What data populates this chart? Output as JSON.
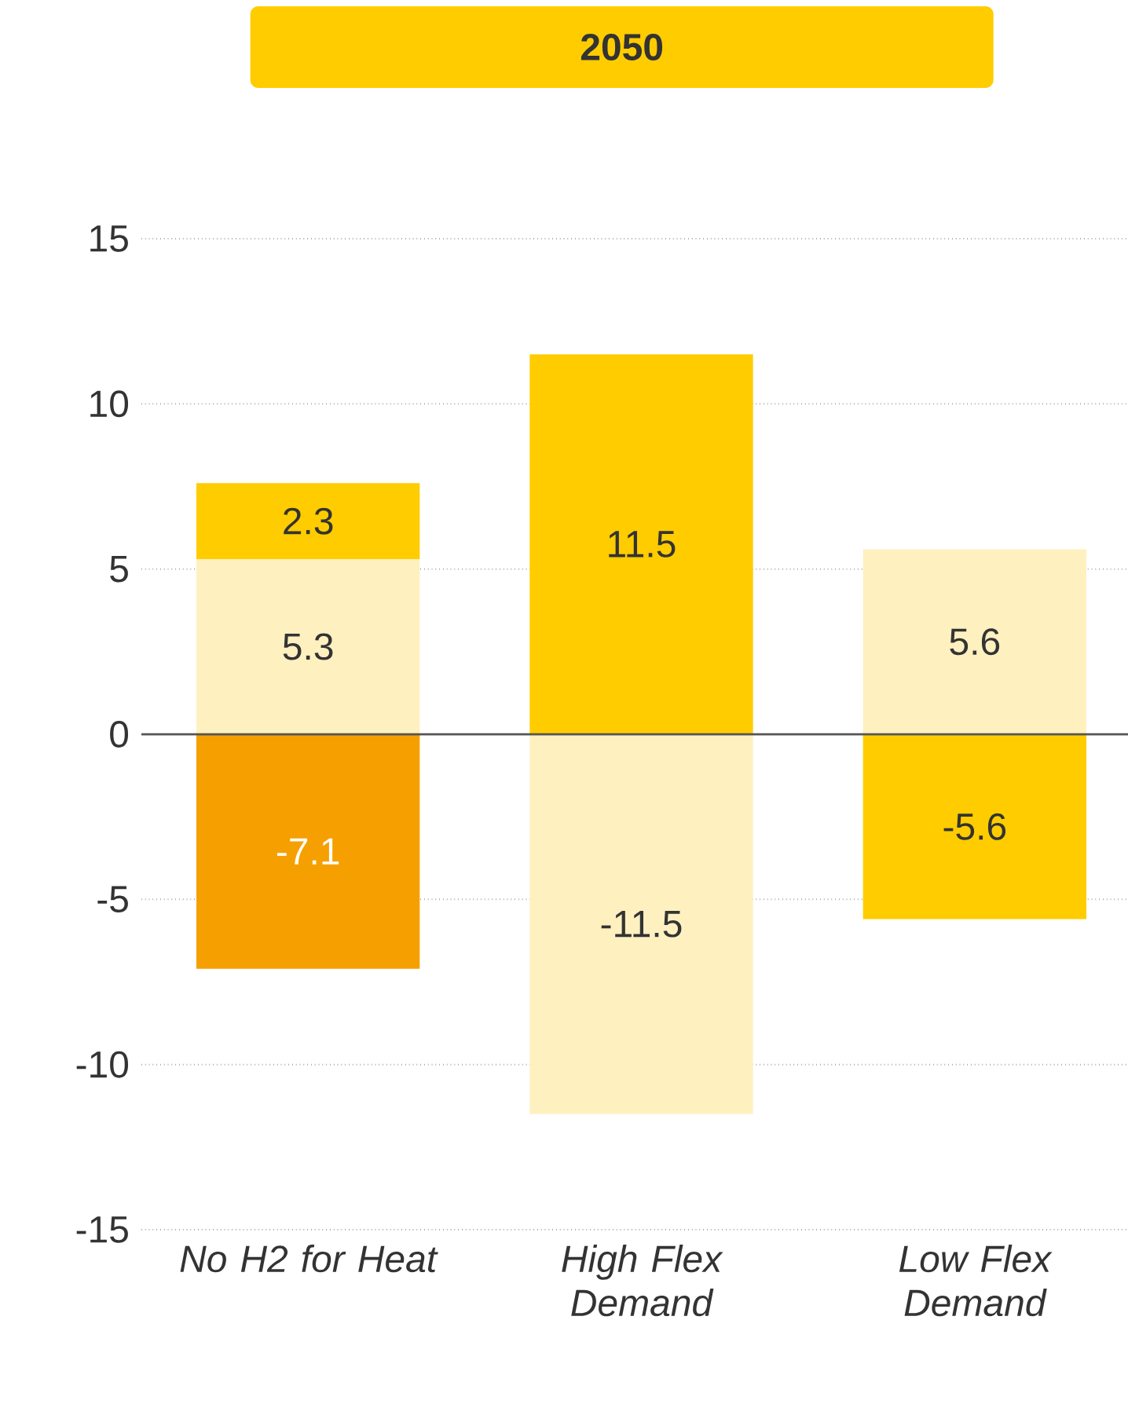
{
  "chart_data": {
    "type": "bar",
    "stacked": true,
    "title": "2050",
    "categories": [
      "No H2 for Heat",
      "High Flex Demand",
      "Low Flex Demand"
    ],
    "series": [
      {
        "color": "#fff0c0",
        "values": [
          5.3,
          -11.5,
          5.6
        ]
      },
      {
        "color": "#ffcc00",
        "values": [
          2.3,
          11.5,
          -5.6
        ]
      },
      {
        "color": "#f5a000",
        "values": [
          -7.1,
          null,
          null
        ]
      }
    ],
    "ylim": [
      -15,
      15
    ],
    "yticks": [
      -15,
      -10,
      -5,
      0,
      5,
      10,
      15
    ],
    "grid": "y",
    "data_labels": true,
    "ref_lines": [
      {
        "axis": "y",
        "value": 0,
        "color": "#555555"
      }
    ]
  }
}
